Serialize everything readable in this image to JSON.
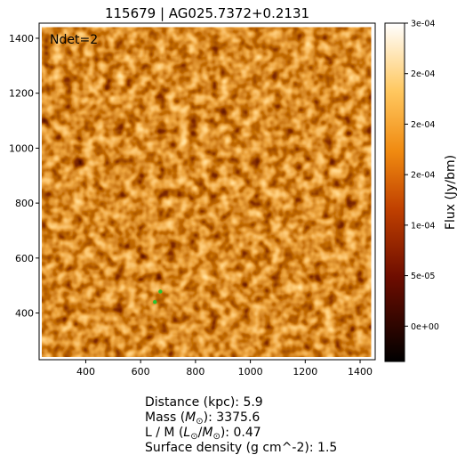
{
  "figure": {
    "title": "115679 | AG025.7372+0.2131",
    "ndet_label": "Ndet=2",
    "x_axis": {
      "range": [
        230,
        1455
      ],
      "ticks": [
        400,
        600,
        800,
        1000,
        1200,
        1400
      ]
    },
    "y_axis": {
      "range": [
        230,
        1455
      ],
      "ticks": [
        400,
        600,
        800,
        1000,
        1200,
        1400
      ]
    },
    "colorbar": {
      "label": "Flux (Jy/bm)",
      "min": -3.5e-05,
      "max": 0.0003,
      "ticks": [
        {
          "value": 0.0,
          "label": "0e+00"
        },
        {
          "value": 5e-05,
          "label": "5e-05"
        },
        {
          "value": 0.0001,
          "label": "1e-04"
        },
        {
          "value": 0.00015,
          "label": "2e-04"
        },
        {
          "value": 0.0002,
          "label": "2e-04"
        },
        {
          "value": 0.00025,
          "label": "2e-04"
        },
        {
          "value": 0.0003,
          "label": "3e-04"
        }
      ]
    },
    "image_center": [
      840,
      840
    ],
    "image_radius_data": 600,
    "detections": [
      {
        "x": 652,
        "y": 440
      },
      {
        "x": 672,
        "y": 478
      }
    ],
    "colors": {
      "detection": "#2ec02e"
    }
  },
  "info": {
    "distance_label": "Distance (kpc):",
    "distance_value": "5.9",
    "mass_label_pre": "Mass (",
    "mass_label_m": "M",
    "mass_label_sub": "⊙",
    "mass_label_post": "):",
    "mass_value": "3375.6",
    "lm_label_pre": "L / M (",
    "lm_label_l": "L",
    "lm_label_sub1": "⊙",
    "lm_label_mid": "/",
    "lm_label_m": "M",
    "lm_label_sub2": "⊙",
    "lm_label_post": "):",
    "lm_value": "0.47",
    "sd_label": "Surface density (g cm^-2):",
    "sd_value": "1.5"
  }
}
